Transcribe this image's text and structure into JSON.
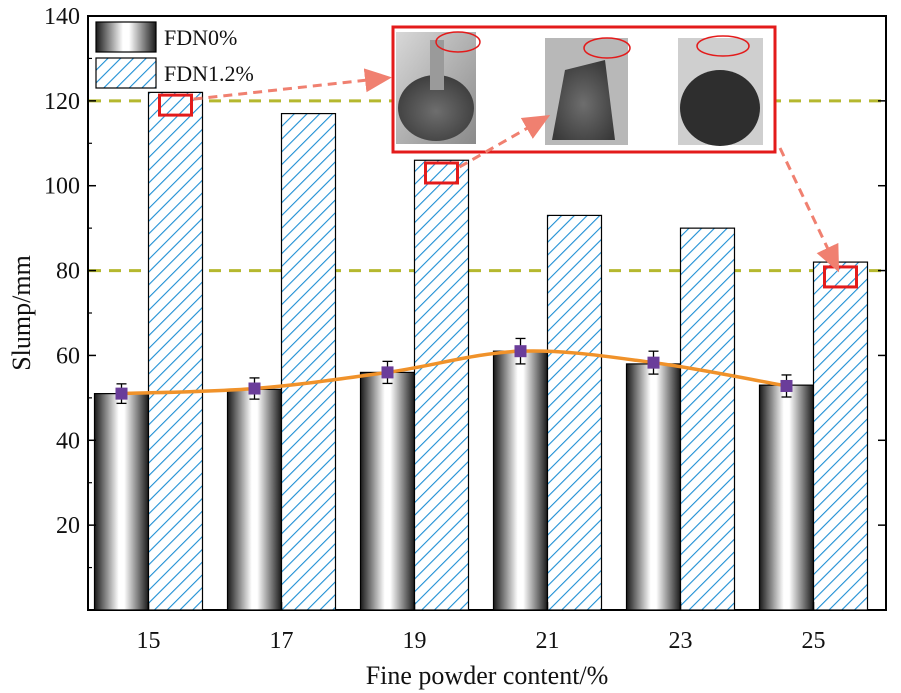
{
  "chart_data": {
    "type": "bar",
    "title": "",
    "xlabel": "Fine powder content/%",
    "ylabel": "Slump/mm",
    "categories": [
      "15",
      "17",
      "19",
      "21",
      "23",
      "25"
    ],
    "ylim": [
      0,
      140
    ],
    "yticks": [
      20,
      40,
      60,
      80,
      100,
      120,
      140
    ],
    "series": [
      {
        "name": "FDN0%",
        "values": [
          51,
          52,
          56,
          61,
          58,
          53
        ],
        "style": "gray-gradient"
      },
      {
        "name": "FDN1.2%",
        "values": [
          122,
          117,
          106,
          93,
          90,
          82
        ],
        "style": "blue-hatch"
      }
    ],
    "error_points": {
      "series": "FDN0%",
      "values": [
        51,
        52.2,
        56,
        61,
        58.3,
        52.8
      ],
      "errors": [
        2.3,
        2.5,
        2.6,
        3.0,
        2.7,
        2.6
      ],
      "marker_color": "#6a3d9a"
    },
    "trend_line": {
      "series": "FDN0%",
      "color": "#f0922a"
    },
    "reference_lines": [
      {
        "y": 120,
        "color": "#b5b82e",
        "style": "dashed"
      },
      {
        "y": 80,
        "color": "#b5b82e",
        "style": "dashed"
      }
    ],
    "highlights": [
      {
        "category": "15",
        "y": 119,
        "color": "#e31b1b"
      },
      {
        "category": "19",
        "y": 103,
        "color": "#e31b1b"
      },
      {
        "category": "25",
        "y": 78.5,
        "color": "#e31b1b"
      }
    ],
    "inset": {
      "description_icon": "slump-test-photos",
      "border_color": "#e31b1b",
      "photo_count": 3
    },
    "legend_position": "top-left",
    "colors": {
      "bar_hatch": "#1e8fd4",
      "bar_border": "#000000",
      "trend": "#f0922a",
      "ref_line": "#b5b82e",
      "highlight": "#e31b1b",
      "arrow": "#f08070"
    }
  }
}
